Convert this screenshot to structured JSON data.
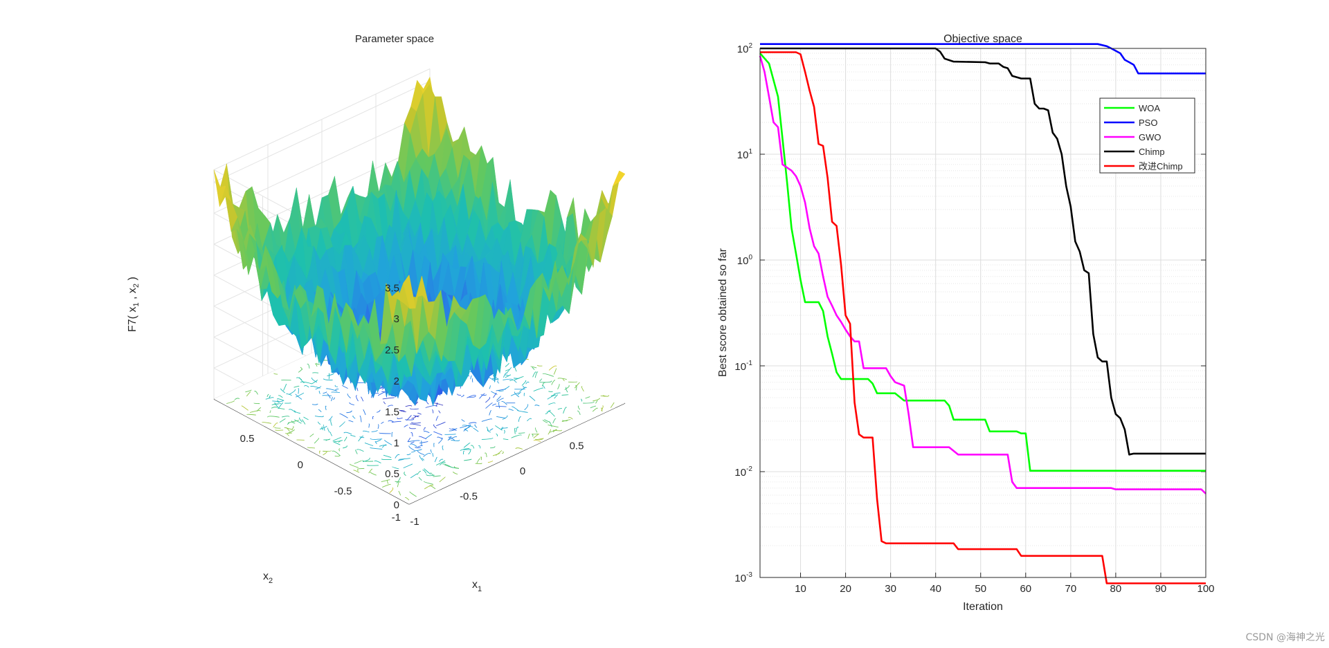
{
  "watermark": "CSDN @海神之光",
  "chart_data": [
    {
      "type": "surface",
      "title": "Parameter space",
      "zlabel": "F7( x",
      "zlabel_sub1": "1",
      "zlabel_mid": " , x",
      "zlabel_sub2": "2",
      "zlabel_end": " )",
      "xlabel": "x",
      "xlabel_sub": "1",
      "ylabel": "x",
      "ylabel_sub": "2",
      "z_ticks": [
        "0",
        "0.5",
        "1",
        "1.5",
        "2",
        "2.5",
        "3",
        "3.5"
      ],
      "x1_ticks": [
        "-1",
        "-0.5",
        "0",
        "0.5"
      ],
      "x2_ticks": [
        "-1",
        "-0.5",
        "0",
        "0.5"
      ],
      "zlim": [
        0,
        3.7
      ],
      "colormap": [
        "#3e26a8",
        "#2d5fea",
        "#21a3db",
        "#1ec0ae",
        "#62c860",
        "#c2c52f",
        "#f7d62b"
      ]
    },
    {
      "type": "line",
      "title": "Objective space",
      "xlabel": "Iteration",
      "ylabel": "Best score obtained so far",
      "yscale": "log",
      "xlim": [
        1,
        100
      ],
      "ylim_exp": [
        -3,
        2
      ],
      "x_ticks": [
        "10",
        "20",
        "30",
        "40",
        "50",
        "60",
        "70",
        "80",
        "90",
        "100"
      ],
      "y_ticks": [
        {
          "base": "10",
          "exp": "-3"
        },
        {
          "base": "10",
          "exp": "-2"
        },
        {
          "base": "10",
          "exp": "-1"
        },
        {
          "base": "10",
          "exp": "0"
        },
        {
          "base": "10",
          "exp": "1"
        },
        {
          "base": "10",
          "exp": "2"
        }
      ],
      "legend": "top-right",
      "series": [
        {
          "name": "WOA",
          "color": "#00ff00",
          "points": [
            [
              1,
              90
            ],
            [
              3,
              72
            ],
            [
              5,
              35
            ],
            [
              6,
              14
            ],
            [
              7,
              5.5
            ],
            [
              8,
              2
            ],
            [
              9,
              1.15
            ],
            [
              10,
              0.65
            ],
            [
              11,
              0.4
            ],
            [
              14,
              0.4
            ],
            [
              15,
              0.33
            ],
            [
              16,
              0.19
            ],
            [
              17,
              0.13
            ],
            [
              18,
              0.087
            ],
            [
              19,
              0.075
            ],
            [
              25,
              0.075
            ],
            [
              26,
              0.068
            ],
            [
              27,
              0.055
            ],
            [
              31,
              0.055
            ],
            [
              33,
              0.047
            ],
            [
              42,
              0.047
            ],
            [
              43,
              0.042
            ],
            [
              44,
              0.031
            ],
            [
              51,
              0.031
            ],
            [
              52,
              0.024
            ],
            [
              58,
              0.024
            ],
            [
              59,
              0.023
            ],
            [
              60,
              0.023
            ],
            [
              61,
              0.0102
            ],
            [
              100,
              0.0102
            ]
          ]
        },
        {
          "name": "PSO",
          "color": "#0000ff",
          "points": [
            [
              1,
              110
            ],
            [
              76,
              110
            ],
            [
              78,
              105
            ],
            [
              79,
              100
            ],
            [
              81,
              90
            ],
            [
              82,
              78
            ],
            [
              83,
              74
            ],
            [
              84,
              70
            ],
            [
              85,
              58
            ],
            [
              100,
              58
            ]
          ]
        },
        {
          "name": "GWO",
          "color": "#ff00ff",
          "points": [
            [
              1,
              85
            ],
            [
              2,
              60
            ],
            [
              3,
              35
            ],
            [
              4,
              20
            ],
            [
              5,
              18
            ],
            [
              6,
              8
            ],
            [
              8,
              7
            ],
            [
              9,
              6.2
            ],
            [
              10,
              5
            ],
            [
              11,
              3.5
            ],
            [
              12,
              2
            ],
            [
              13,
              1.35
            ],
            [
              14,
              1.15
            ],
            [
              15,
              0.7
            ],
            [
              16,
              0.45
            ],
            [
              17,
              0.37
            ],
            [
              18,
              0.3
            ],
            [
              19,
              0.26
            ],
            [
              20,
              0.22
            ],
            [
              21,
              0.19
            ],
            [
              22,
              0.17
            ],
            [
              23,
              0.17
            ],
            [
              24,
              0.095
            ],
            [
              25,
              0.095
            ],
            [
              29,
              0.095
            ],
            [
              30,
              0.08
            ],
            [
              31,
              0.07
            ],
            [
              33,
              0.065
            ],
            [
              34,
              0.035
            ],
            [
              35,
              0.017
            ],
            [
              43,
              0.017
            ],
            [
              45,
              0.0145
            ],
            [
              56,
              0.0145
            ],
            [
              57,
              0.008
            ],
            [
              58,
              0.007
            ],
            [
              79,
              0.007
            ],
            [
              80,
              0.0068
            ],
            [
              99,
              0.0068
            ],
            [
              100,
              0.0062
            ]
          ]
        },
        {
          "name": "Chimp",
          "color": "#000000",
          "points": [
            [
              1,
              100
            ],
            [
              40,
              100
            ],
            [
              41,
              93
            ],
            [
              42,
              80
            ],
            [
              44,
              75
            ],
            [
              51,
              74
            ],
            [
              52,
              72
            ],
            [
              54,
              72
            ],
            [
              55,
              67
            ],
            [
              56,
              65
            ],
            [
              57,
              55
            ],
            [
              59,
              52
            ],
            [
              61,
              52
            ],
            [
              62,
              30
            ],
            [
              63,
              27
            ],
            [
              64,
              27
            ],
            [
              65,
              26
            ],
            [
              66,
              16
            ],
            [
              67,
              14
            ],
            [
              68,
              10
            ],
            [
              69,
              5
            ],
            [
              70,
              3.2
            ],
            [
              71,
              1.5
            ],
            [
              72,
              1.2
            ],
            [
              73,
              0.8
            ],
            [
              74,
              0.75
            ],
            [
              75,
              0.2
            ],
            [
              76,
              0.12
            ],
            [
              77,
              0.11
            ],
            [
              78,
              0.11
            ],
            [
              79,
              0.05
            ],
            [
              80,
              0.035
            ],
            [
              81,
              0.032
            ],
            [
              82,
              0.025
            ],
            [
              83,
              0.0145
            ],
            [
              84,
              0.0148
            ],
            [
              100,
              0.0148
            ]
          ]
        },
        {
          "name": "改进Chimp",
          "color": "#ff0000",
          "points": [
            [
              1,
              92
            ],
            [
              9,
              92
            ],
            [
              10,
              88
            ],
            [
              11,
              60
            ],
            [
              12,
              40
            ],
            [
              13,
              28
            ],
            [
              14,
              12.5
            ],
            [
              15,
              12
            ],
            [
              16,
              6
            ],
            [
              17,
              2.3
            ],
            [
              18,
              2.1
            ],
            [
              19,
              0.9
            ],
            [
              20,
              0.3
            ],
            [
              21,
              0.25
            ],
            [
              22,
              0.045
            ],
            [
              23,
              0.0225
            ],
            [
              24,
              0.021
            ],
            [
              26,
              0.021
            ],
            [
              27,
              0.0055
            ],
            [
              28,
              0.0022
            ],
            [
              29,
              0.0021
            ],
            [
              44,
              0.0021
            ],
            [
              45,
              0.00185
            ],
            [
              58,
              0.00185
            ],
            [
              59,
              0.0016
            ],
            [
              77,
              0.0016
            ],
            [
              78,
              0.00088
            ],
            [
              100,
              0.00088
            ]
          ]
        }
      ]
    }
  ]
}
